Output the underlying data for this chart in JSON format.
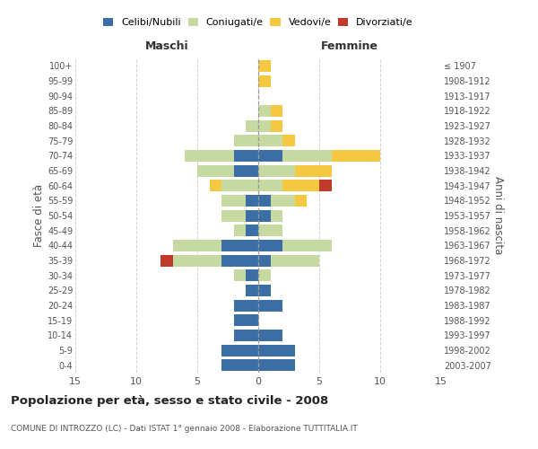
{
  "age_groups": [
    "0-4",
    "5-9",
    "10-14",
    "15-19",
    "20-24",
    "25-29",
    "30-34",
    "35-39",
    "40-44",
    "45-49",
    "50-54",
    "55-59",
    "60-64",
    "65-69",
    "70-74",
    "75-79",
    "80-84",
    "85-89",
    "90-94",
    "95-99",
    "100+"
  ],
  "birth_years": [
    "2003-2007",
    "1998-2002",
    "1993-1997",
    "1988-1992",
    "1983-1987",
    "1978-1982",
    "1973-1977",
    "1968-1972",
    "1963-1967",
    "1958-1962",
    "1953-1957",
    "1948-1952",
    "1943-1947",
    "1938-1942",
    "1933-1937",
    "1928-1932",
    "1923-1927",
    "1918-1922",
    "1913-1917",
    "1908-1912",
    "≤ 1907"
  ],
  "colors": {
    "celibi": "#3a6ea5",
    "coniugati": "#c5d9a0",
    "vedovi": "#f5c842",
    "divorziati": "#c0392b"
  },
  "maschi": {
    "celibi": [
      3,
      3,
      2,
      2,
      2,
      1,
      1,
      3,
      3,
      1,
      1,
      1,
      0,
      2,
      2,
      0,
      0,
      0,
      0,
      0,
      0
    ],
    "coniugati": [
      0,
      0,
      0,
      0,
      0,
      0,
      1,
      4,
      4,
      1,
      2,
      2,
      3,
      3,
      4,
      2,
      1,
      0,
      0,
      0,
      0
    ],
    "vedovi": [
      0,
      0,
      0,
      0,
      0,
      0,
      0,
      0,
      0,
      0,
      0,
      0,
      1,
      0,
      0,
      0,
      0,
      0,
      0,
      0,
      0
    ],
    "divorziati": [
      0,
      0,
      0,
      0,
      0,
      0,
      0,
      1,
      0,
      0,
      0,
      0,
      0,
      0,
      0,
      0,
      0,
      0,
      0,
      0,
      0
    ]
  },
  "femmine": {
    "celibi": [
      3,
      3,
      2,
      0,
      2,
      1,
      0,
      1,
      2,
      0,
      1,
      1,
      0,
      0,
      2,
      0,
      0,
      0,
      0,
      0,
      0
    ],
    "coniugati": [
      0,
      0,
      0,
      0,
      0,
      0,
      1,
      4,
      4,
      2,
      1,
      2,
      2,
      3,
      4,
      2,
      1,
      1,
      0,
      0,
      0
    ],
    "vedovi": [
      0,
      0,
      0,
      0,
      0,
      0,
      0,
      0,
      0,
      0,
      0,
      1,
      3,
      3,
      4,
      1,
      1,
      1,
      0,
      1,
      1
    ],
    "divorziati": [
      0,
      0,
      0,
      0,
      0,
      0,
      0,
      0,
      0,
      0,
      0,
      0,
      1,
      0,
      0,
      0,
      0,
      0,
      0,
      0,
      0
    ]
  },
  "xlim": 15,
  "title": "Popolazione per età, sesso e stato civile - 2008",
  "subtitle": "COMUNE DI INTROZZO (LC) - Dati ISTAT 1° gennaio 2008 - Elaborazione TUTTITALIA.IT",
  "ylabel_left": "Fasce di età",
  "ylabel_right": "Anni di nascita",
  "xlabel_left": "Maschi",
  "xlabel_right": "Femmine",
  "bg_color": "#ffffff",
  "grid_color": "#cccccc"
}
